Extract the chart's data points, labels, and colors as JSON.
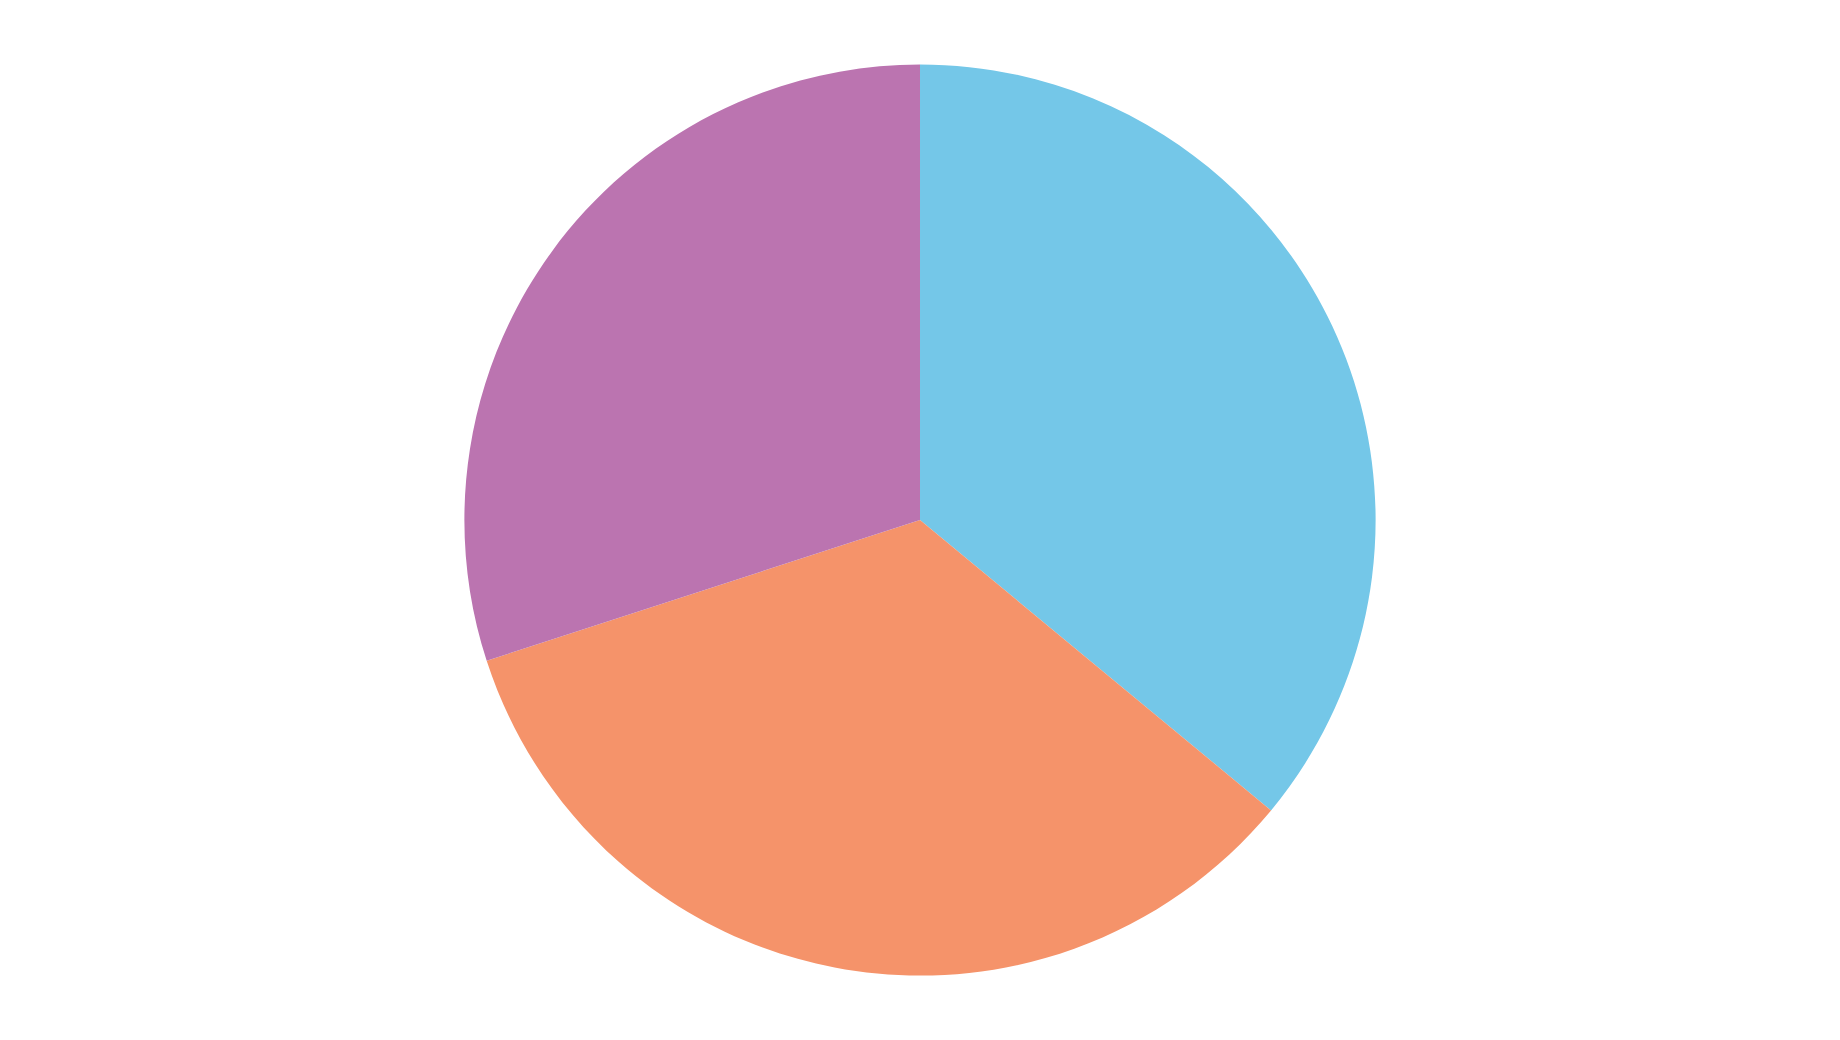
{
  "chart_data": {
    "type": "pie",
    "categories": [
      null,
      null,
      null
    ],
    "values": [
      36,
      34,
      30
    ],
    "colors": [
      "#74c7e8",
      "#f5936a",
      "#bb74b0"
    ]
  }
}
